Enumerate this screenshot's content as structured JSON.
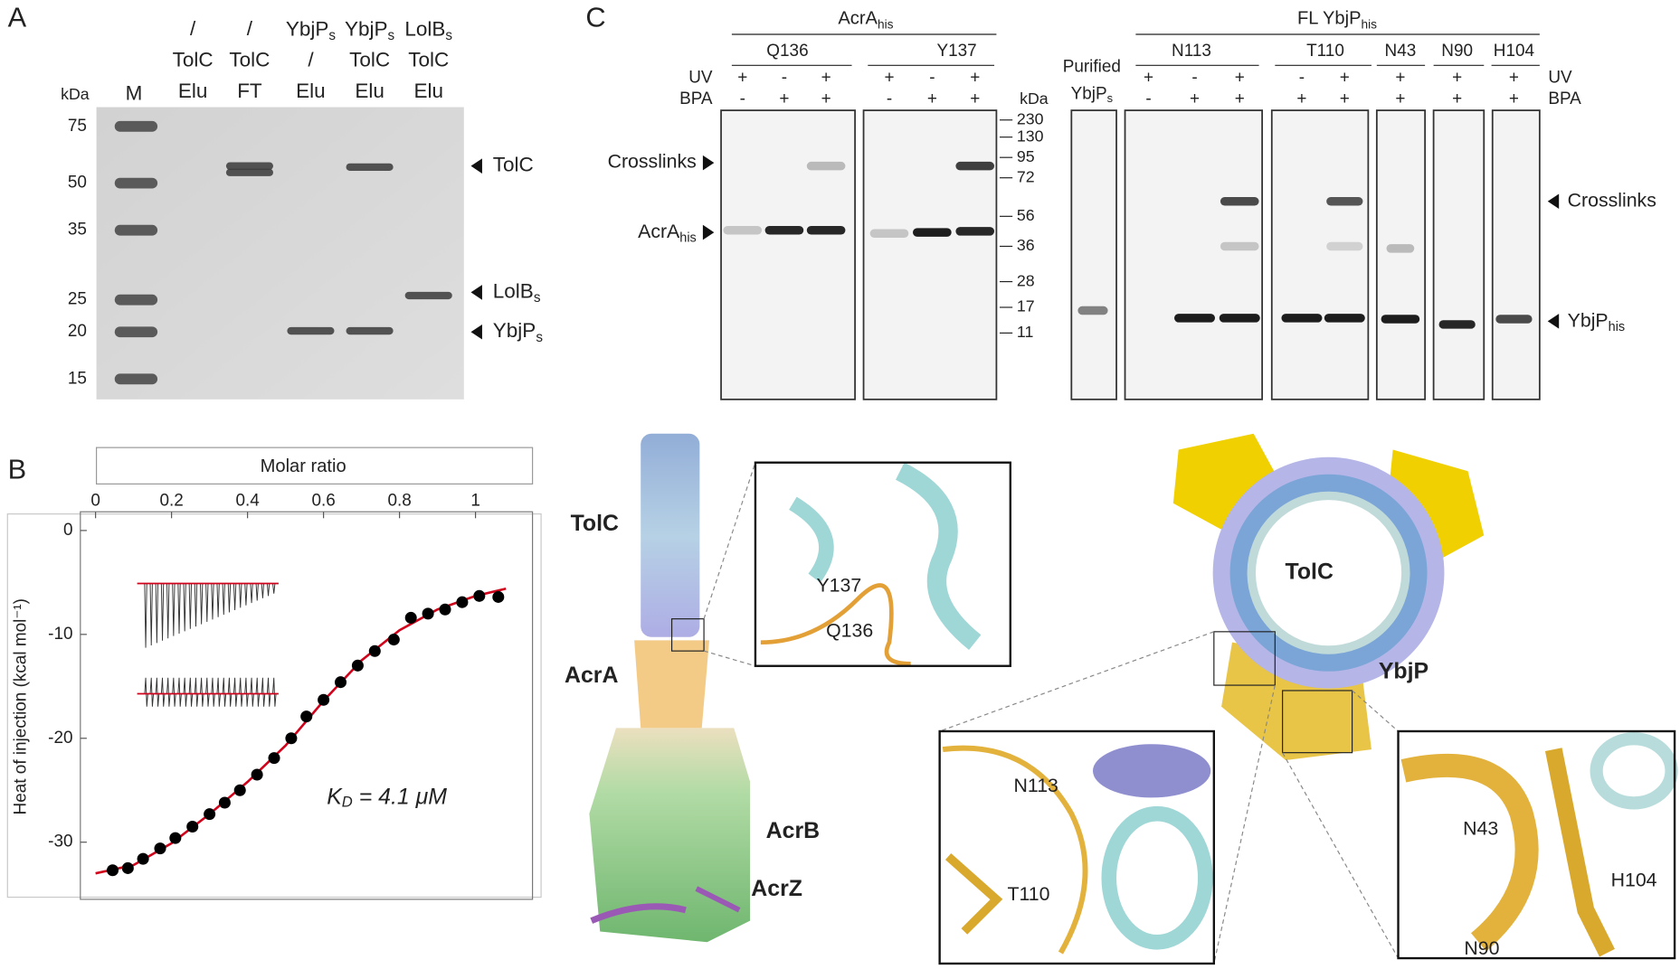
{
  "panel_a": {
    "letter": "A",
    "kda_label": "kDa",
    "marker_lane": "M",
    "lanes": [
      [
        "/",
        "TolC",
        "Elu"
      ],
      [
        "/",
        "TolC",
        "FT"
      ],
      [
        {
          "t": "YbjP",
          "s": "s"
        },
        "/",
        "Elu"
      ],
      [
        {
          "t": "YbjP",
          "s": "s"
        },
        "TolC",
        "Elu"
      ],
      [
        {
          "t": "LolB",
          "s": "s"
        },
        "TolC",
        "Elu"
      ]
    ],
    "markers": [
      75,
      50,
      35,
      25,
      20,
      15
    ],
    "bands": [
      "TolC",
      {
        "t": "LolB",
        "s": "s"
      },
      {
        "t": "YbjP",
        "s": "s"
      }
    ]
  },
  "chart_data": {
    "type": "scatter",
    "letter": "B",
    "x_label": "Molar ratio",
    "y_label": "Heat of injection (kcal mol⁻¹)",
    "annotation": {
      "t": "K",
      "s": "D",
      "rest": " = 4.1 μM"
    },
    "xlim": [
      -0.04,
      1.15
    ],
    "ylim": [
      -35.5,
      1.8
    ],
    "xticks": [
      0,
      0.2,
      0.4,
      0.6,
      0.8,
      1
    ],
    "yticks": [
      0,
      -10,
      -20,
      -30
    ],
    "series": [
      {
        "color": "#000000",
        "style": "markers",
        "x": [
          0.045,
          0.085,
          0.125,
          0.17,
          0.21,
          0.255,
          0.3,
          0.34,
          0.38,
          0.425,
          0.47,
          0.515,
          0.555,
          0.6,
          0.645,
          0.69,
          0.735,
          0.785,
          0.83,
          0.875,
          0.92,
          0.965,
          1.01,
          1.06
        ],
        "values": [
          -32.7,
          -32.5,
          -31.6,
          -30.6,
          -29.6,
          -28.5,
          -27.3,
          -26.2,
          -25.0,
          -23.5,
          -21.9,
          -20.0,
          -17.9,
          -16.3,
          -14.6,
          -13.0,
          -11.6,
          -10.5,
          -8.4,
          -8.0,
          -7.6,
          -6.9,
          -6.3,
          -6.4
        ]
      },
      {
        "color": "#d0021b",
        "style": "line",
        "x": [
          0,
          0.1,
          0.2,
          0.3,
          0.4,
          0.5,
          0.6,
          0.7,
          0.8,
          0.9,
          1.0,
          1.08
        ],
        "values": [
          -33.0,
          -32.2,
          -30.1,
          -27.3,
          -24.2,
          -20.7,
          -16.4,
          -12.5,
          -9.6,
          -7.6,
          -6.3,
          -5.6
        ]
      }
    ]
  },
  "panel_c": {
    "letter": "C",
    "acra_group": {
      "t": "AcrA",
      "s": "his"
    },
    "acra_sites": [
      "Q136",
      "Y137"
    ],
    "row_labels": [
      "UV",
      "BPA"
    ],
    "acra_uv": [
      "+",
      "-",
      "+",
      "+",
      "-",
      "+"
    ],
    "acra_bpa": [
      "-",
      "+",
      "+",
      "-",
      "+",
      "+"
    ],
    "left_arrows": [
      "Crosslinks",
      {
        "t": "AcrA",
        "s": "his"
      }
    ],
    "kda_label": "kDa",
    "ladder": [
      230,
      130,
      95,
      72,
      56,
      36,
      28,
      17,
      11
    ],
    "purified": [
      "Purified",
      {
        "t": "YbjP",
        "s": "s"
      }
    ],
    "ybjp_group": {
      "t": "FL YbjP",
      "s": "his"
    },
    "ybjp_sites": [
      "N113",
      "T110",
      "N43",
      "N90",
      "H104"
    ],
    "ybjp_uv": [
      "+",
      "-",
      "+",
      "-",
      "+",
      "+",
      "+",
      "+"
    ],
    "ybjp_bpa": [
      "-",
      "+",
      "+",
      "+",
      "+",
      "+",
      "+",
      "+"
    ],
    "right_arrows": [
      "Crosslinks",
      {
        "t": "YbjP",
        "s": "his"
      }
    ]
  },
  "panel_d": {
    "complex": [
      "TolC",
      "AcrA",
      "AcrB",
      "AcrZ"
    ],
    "zoom_acra": [
      "Y137",
      "Q136"
    ],
    "ring": [
      "TolC",
      "YbjP"
    ],
    "zoom_left": [
      "N113",
      "T110"
    ],
    "zoom_right": [
      "N43",
      "H104",
      "N90"
    ]
  }
}
